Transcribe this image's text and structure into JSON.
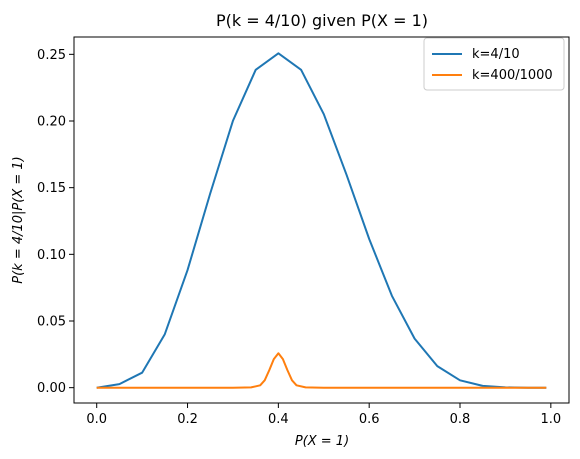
{
  "chart_data": {
    "type": "line",
    "title": "P(k = 4/10) given P(X = 1)",
    "xlabel": "P(X = 1)",
    "ylabel": "P(k = 4/10|P(X = 1)",
    "xlim": [
      -0.05,
      1.04
    ],
    "ylim": [
      -0.0115,
      0.263
    ],
    "x_ticks": [
      0.0,
      0.2,
      0.4,
      0.6,
      0.8,
      1.0
    ],
    "x_tick_labels": [
      "0.0",
      "0.2",
      "0.4",
      "0.6",
      "0.8",
      "1.0"
    ],
    "y_ticks": [
      0.0,
      0.05,
      0.1,
      0.15,
      0.2,
      0.25
    ],
    "y_tick_labels": [
      "0.00",
      "0.05",
      "0.10",
      "0.15",
      "0.20",
      "0.25"
    ],
    "grid": false,
    "legend_position": "top-right",
    "x": [
      0.0,
      0.05,
      0.1,
      0.15,
      0.2,
      0.25,
      0.3,
      0.35,
      0.4,
      0.45,
      0.5,
      0.55,
      0.6,
      0.65,
      0.7,
      0.75,
      0.8,
      0.85,
      0.9,
      0.95,
      0.99
    ],
    "series": [
      {
        "name": "k=4/10",
        "color": "#1f77b4",
        "values": [
          0.0,
          0.0027,
          0.0112,
          0.0401,
          0.0881,
          0.1456,
          0.2001,
          0.2384,
          0.2508,
          0.2384,
          0.2051,
          0.1597,
          0.1115,
          0.0689,
          0.0368,
          0.0162,
          0.0055,
          0.0013,
          0.0002,
          0.0,
          0.0
        ]
      },
      {
        "name": "k=400/1000",
        "color": "#ff7f0e",
        "x": [
          0.0,
          0.3,
          0.34,
          0.36,
          0.37,
          0.38,
          0.39,
          0.4,
          0.41,
          0.42,
          0.43,
          0.44,
          0.46,
          0.5,
          0.99
        ],
        "values": [
          0.0,
          0.0,
          0.0002,
          0.0018,
          0.0055,
          0.0132,
          0.0214,
          0.0258,
          0.0214,
          0.0132,
          0.0055,
          0.0018,
          0.0002,
          0.0,
          0.0
        ]
      }
    ]
  }
}
